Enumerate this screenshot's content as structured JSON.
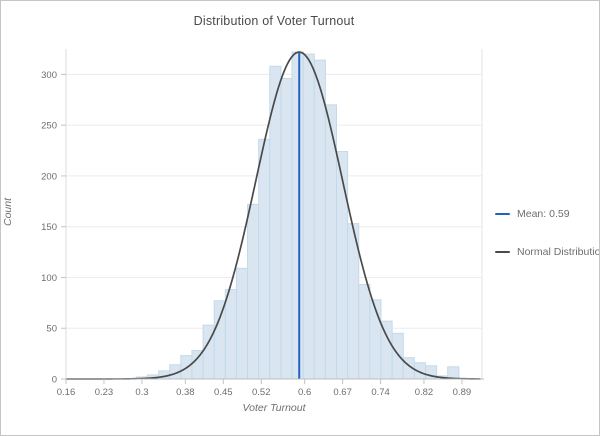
{
  "window": {
    "background": "#ffffff",
    "border_color": "#c5c5c5"
  },
  "chart_data": {
    "type": "bar",
    "subtype": "histogram-with-normal-overlay",
    "title": "Distribution of Voter Turnout",
    "xlabel": "Voter Turnout",
    "ylabel": "Count",
    "xlim": [
      0.16,
      0.927
    ],
    "ylim": [
      0,
      325
    ],
    "grid": true,
    "x_ticks": [
      0.16,
      0.23,
      0.3,
      0.38,
      0.45,
      0.52,
      0.6,
      0.67,
      0.74,
      0.82,
      0.89
    ],
    "x_tick_labels": [
      "0.16",
      "0.23",
      "0.3",
      "0.38",
      "0.45",
      "0.52",
      "0.6",
      "0.67",
      "0.74",
      "0.82",
      "0.89"
    ],
    "y_ticks": [
      0,
      50,
      100,
      150,
      200,
      250,
      300
    ],
    "y_tick_labels": [
      "0",
      "50",
      "100",
      "150",
      "200",
      "250",
      "300"
    ],
    "histogram": {
      "bin_width": 0.0205,
      "bin_centers": [
        0.3,
        0.3205,
        0.341,
        0.3615,
        0.382,
        0.4025,
        0.423,
        0.4435,
        0.464,
        0.4845,
        0.505,
        0.5255,
        0.546,
        0.5665,
        0.587,
        0.6075,
        0.628,
        0.6485,
        0.669,
        0.6895,
        0.71,
        0.7305,
        0.751,
        0.7715,
        0.792,
        0.8125,
        0.833,
        0.8535,
        0.874
      ],
      "counts": [
        2,
        4,
        8,
        14,
        23,
        28,
        53,
        77,
        88,
        109,
        172,
        236,
        308,
        296,
        322,
        320,
        314,
        270,
        224,
        153,
        93,
        78,
        57,
        45,
        21,
        16,
        13,
        3,
        12
      ],
      "fill_color": "#d9e6f1",
      "edge_color": "#c3d9e9"
    },
    "normal_curve": {
      "mean": 0.59,
      "sigma": 0.08,
      "peak_count": 322,
      "color": "#4a4a4a"
    },
    "mean_line": {
      "x": 0.59,
      "top_count": 322,
      "color": "#2660c4"
    },
    "legend": {
      "position": "right",
      "items": [
        {
          "label": "Mean: 0.59",
          "color": "#2660c4"
        },
        {
          "label": "Normal Distribution",
          "color": "#4a4a4a"
        }
      ]
    },
    "style": {
      "grid_color": "#ececec",
      "axis_line_color": "#bdbdbd",
      "y_axis_line_color": "#dcdcdc",
      "tick_color": "#c4c4c4",
      "tick_label_color": "#6e6e6e",
      "title_color": "#4a4a4a"
    }
  }
}
